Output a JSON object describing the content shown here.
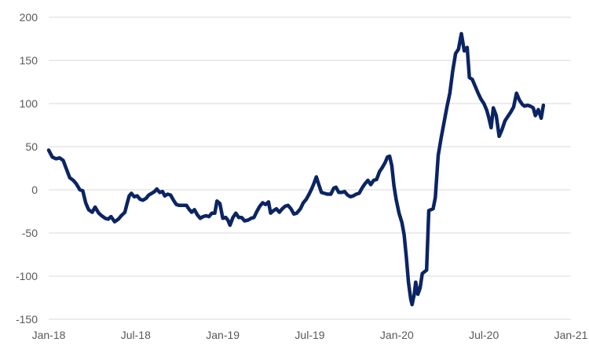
{
  "chart_data": {
    "type": "line",
    "title": "",
    "xlabel": "",
    "ylabel": "",
    "ylim": [
      -150,
      200
    ],
    "yticks": [
      200,
      150,
      100,
      50,
      0,
      -50,
      -100,
      -150
    ],
    "xticks": [
      "Jan-18",
      "Jul-18",
      "Jan-19",
      "Jul-19",
      "Jan-20",
      "Jul-20",
      "Jan-21"
    ],
    "grid": true,
    "legend": "none",
    "series": [
      {
        "color": "#0b2463",
        "points": [
          [
            0,
            46
          ],
          [
            0.5,
            38
          ],
          [
            1.0,
            36
          ],
          [
            1.5,
            37
          ],
          [
            2.0,
            34
          ],
          [
            2.4,
            25
          ],
          [
            2.9,
            14
          ],
          [
            3.4,
            11
          ],
          [
            3.8,
            7
          ],
          [
            4.3,
            0
          ],
          [
            4.7,
            -1
          ],
          [
            5.1,
            -15
          ],
          [
            5.5,
            -23
          ],
          [
            6.0,
            -26
          ],
          [
            6.4,
            -20
          ],
          [
            6.9,
            -27
          ],
          [
            7.3,
            -30
          ],
          [
            7.8,
            -33
          ],
          [
            8.2,
            -34
          ],
          [
            8.6,
            -31
          ],
          [
            9.1,
            -37
          ],
          [
            9.6,
            -34
          ],
          [
            10.0,
            -30
          ],
          [
            10.5,
            -26
          ],
          [
            10.8,
            -16
          ],
          [
            11.1,
            -7
          ],
          [
            11.4,
            -4
          ],
          [
            11.8,
            -8
          ],
          [
            12.2,
            -7
          ],
          [
            12.6,
            -11
          ],
          [
            13.0,
            -12
          ],
          [
            13.4,
            -10
          ],
          [
            13.8,
            -6
          ],
          [
            14.2,
            -4
          ],
          [
            14.6,
            -2
          ],
          [
            14.9,
            1
          ],
          [
            15.3,
            -3
          ],
          [
            15.7,
            -2
          ],
          [
            16.0,
            -7
          ],
          [
            16.4,
            -5
          ],
          [
            16.8,
            -6
          ],
          [
            17.2,
            -12
          ],
          [
            17.6,
            -17
          ],
          [
            18.0,
            -18
          ],
          [
            18.5,
            -18
          ],
          [
            19.0,
            -18
          ],
          [
            19.3,
            -22
          ],
          [
            19.7,
            -26
          ],
          [
            20.1,
            -23
          ],
          [
            20.5,
            -29
          ],
          [
            20.9,
            -33
          ],
          [
            21.3,
            -31
          ],
          [
            21.7,
            -30
          ],
          [
            22.1,
            -31
          ],
          [
            22.5,
            -27
          ],
          [
            22.9,
            -27
          ],
          [
            23.2,
            -13
          ],
          [
            23.6,
            -16
          ],
          [
            24.0,
            -33
          ],
          [
            24.4,
            -32
          ],
          [
            24.7,
            -35
          ],
          [
            25.0,
            -41
          ],
          [
            25.4,
            -32
          ],
          [
            25.8,
            -27
          ],
          [
            26.2,
            -32
          ],
          [
            26.6,
            -32
          ],
          [
            27.0,
            -36
          ],
          [
            27.5,
            -35
          ],
          [
            27.9,
            -33
          ],
          [
            28.3,
            -32
          ],
          [
            28.7,
            -25
          ],
          [
            29.1,
            -19
          ],
          [
            29.5,
            -15
          ],
          [
            29.9,
            -17
          ],
          [
            30.3,
            -14
          ],
          [
            30.6,
            -27
          ],
          [
            31.0,
            -24
          ],
          [
            31.4,
            -22
          ],
          [
            31.8,
            -26
          ],
          [
            32.2,
            -22
          ],
          [
            32.6,
            -19
          ],
          [
            33.0,
            -18
          ],
          [
            33.4,
            -22
          ],
          [
            33.8,
            -28
          ],
          [
            34.2,
            -27
          ],
          [
            34.7,
            -22
          ],
          [
            35.1,
            -15
          ],
          [
            35.5,
            -11
          ],
          [
            35.9,
            -5
          ],
          [
            36.3,
            2
          ],
          [
            36.6,
            8
          ],
          [
            36.9,
            15
          ],
          [
            37.2,
            7
          ],
          [
            37.6,
            -3
          ],
          [
            38.0,
            -4
          ],
          [
            38.4,
            -5
          ],
          [
            38.9,
            -5
          ],
          [
            39.3,
            2
          ],
          [
            39.6,
            3
          ],
          [
            40.0,
            -3
          ],
          [
            40.4,
            -3
          ],
          [
            40.8,
            -2
          ],
          [
            41.2,
            -6
          ],
          [
            41.6,
            -8
          ],
          [
            42.0,
            -7
          ],
          [
            42.4,
            -5
          ],
          [
            42.8,
            -4
          ],
          [
            43.2,
            2
          ],
          [
            43.6,
            7
          ],
          [
            44.0,
            11
          ],
          [
            44.4,
            6
          ],
          [
            44.8,
            11
          ],
          [
            45.2,
            12
          ],
          [
            45.6,
            21
          ],
          [
            46.0,
            26
          ],
          [
            46.4,
            32
          ],
          [
            46.7,
            38
          ],
          [
            47.0,
            39
          ],
          [
            47.3,
            28
          ],
          [
            47.6,
            5
          ],
          [
            47.9,
            -11
          ],
          [
            48.3,
            -27
          ],
          [
            48.7,
            -38
          ],
          [
            49.0,
            -52
          ],
          [
            49.3,
            -77
          ],
          [
            49.6,
            -107
          ],
          [
            49.9,
            -126
          ],
          [
            50.1,
            -133
          ],
          [
            50.4,
            -121
          ],
          [
            50.6,
            -107
          ],
          [
            50.9,
            -121
          ],
          [
            51.2,
            -114
          ],
          [
            51.5,
            -97
          ],
          [
            51.8,
            -95
          ],
          [
            52.1,
            -93
          ],
          [
            52.4,
            -24
          ],
          [
            52.7,
            -23
          ],
          [
            53.0,
            -22
          ],
          [
            53.3,
            -9
          ],
          [
            53.7,
            40
          ],
          [
            54.1,
            60
          ],
          [
            54.5,
            78
          ],
          [
            54.9,
            96
          ],
          [
            55.3,
            112
          ],
          [
            55.7,
            138
          ],
          [
            56.1,
            158
          ],
          [
            56.5,
            163
          ],
          [
            56.9,
            181
          ],
          [
            57.3,
            161
          ],
          [
            57.7,
            165
          ],
          [
            58.0,
            130
          ],
          [
            58.4,
            128
          ],
          [
            58.8,
            120
          ],
          [
            59.2,
            112
          ],
          [
            59.6,
            105
          ],
          [
            60.0,
            100
          ],
          [
            60.4,
            92
          ],
          [
            60.7,
            83
          ],
          [
            61.0,
            72
          ],
          [
            61.3,
            95
          ],
          [
            61.7,
            86
          ],
          [
            62.1,
            62
          ],
          [
            62.5,
            70
          ],
          [
            62.9,
            80
          ],
          [
            63.3,
            85
          ],
          [
            63.7,
            90
          ],
          [
            64.1,
            96
          ],
          [
            64.5,
            112
          ],
          [
            64.9,
            104
          ],
          [
            65.3,
            99
          ],
          [
            65.6,
            97
          ],
          [
            66.0,
            98
          ],
          [
            66.4,
            97
          ],
          [
            66.8,
            95
          ],
          [
            67.1,
            86
          ],
          [
            67.5,
            93
          ],
          [
            67.9,
            83
          ],
          [
            68.2,
            98
          ]
        ]
      }
    ]
  }
}
